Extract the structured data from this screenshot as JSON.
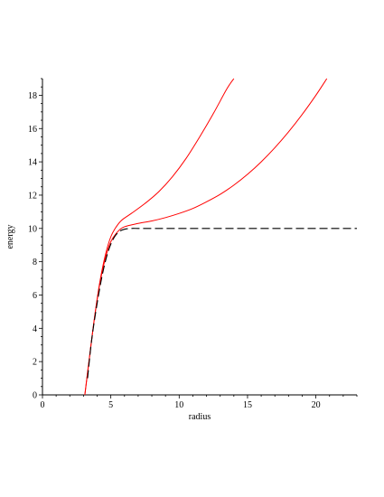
{
  "chart_data": {
    "type": "line",
    "title": "",
    "xlabel": "radius",
    "ylabel": "energy",
    "xlim": [
      0,
      23
    ],
    "ylim": [
      0,
      19
    ],
    "x_ticks": [
      0,
      5,
      10,
      15,
      20
    ],
    "y_ticks": [
      0,
      2,
      4,
      6,
      8,
      10,
      12,
      14,
      16,
      18
    ],
    "grid": false,
    "legend": "none",
    "series": [
      {
        "color": "#ff0000",
        "style": "solid",
        "x": [
          3.1,
          3.4,
          3.8,
          4.2,
          4.6,
          5.0,
          5.4,
          5.8,
          6.5,
          7.5,
          8.5,
          9.5,
          10.5,
          11.5,
          12.5,
          13.5,
          14.0
        ],
        "y": [
          0.0,
          2.0,
          4.6,
          6.8,
          8.4,
          9.5,
          10.1,
          10.5,
          10.9,
          11.5,
          12.2,
          13.1,
          14.2,
          15.5,
          16.9,
          18.4,
          19.0
        ]
      },
      {
        "color": "#ff0000",
        "style": "solid",
        "x": [
          3.1,
          3.4,
          3.8,
          4.2,
          4.6,
          5.0,
          5.5,
          6.0,
          7.0,
          8.0,
          9.0,
          10.0,
          11.0,
          12.0,
          13.0,
          14.0,
          15.0,
          16.0,
          17.0,
          18.0,
          19.0,
          20.0,
          20.8
        ],
        "y": [
          0.0,
          2.0,
          4.6,
          6.7,
          8.2,
          9.2,
          9.8,
          10.1,
          10.3,
          10.45,
          10.65,
          10.9,
          11.2,
          11.6,
          12.05,
          12.6,
          13.25,
          14.0,
          14.85,
          15.8,
          16.85,
          18.0,
          19.0
        ]
      },
      {
        "color": "#000000",
        "style": "dashed",
        "x": [
          3.3,
          3.6,
          4.0,
          4.4,
          4.8,
          5.2,
          5.6,
          6.0,
          6.5,
          7.0,
          8.0,
          10.0,
          15.0,
          20.0,
          23.0
        ],
        "y": [
          1.0,
          3.3,
          5.5,
          7.3,
          8.6,
          9.4,
          9.8,
          9.95,
          10.0,
          10.0,
          10.0,
          10.0,
          10.0,
          10.0,
          10.0
        ]
      }
    ]
  }
}
